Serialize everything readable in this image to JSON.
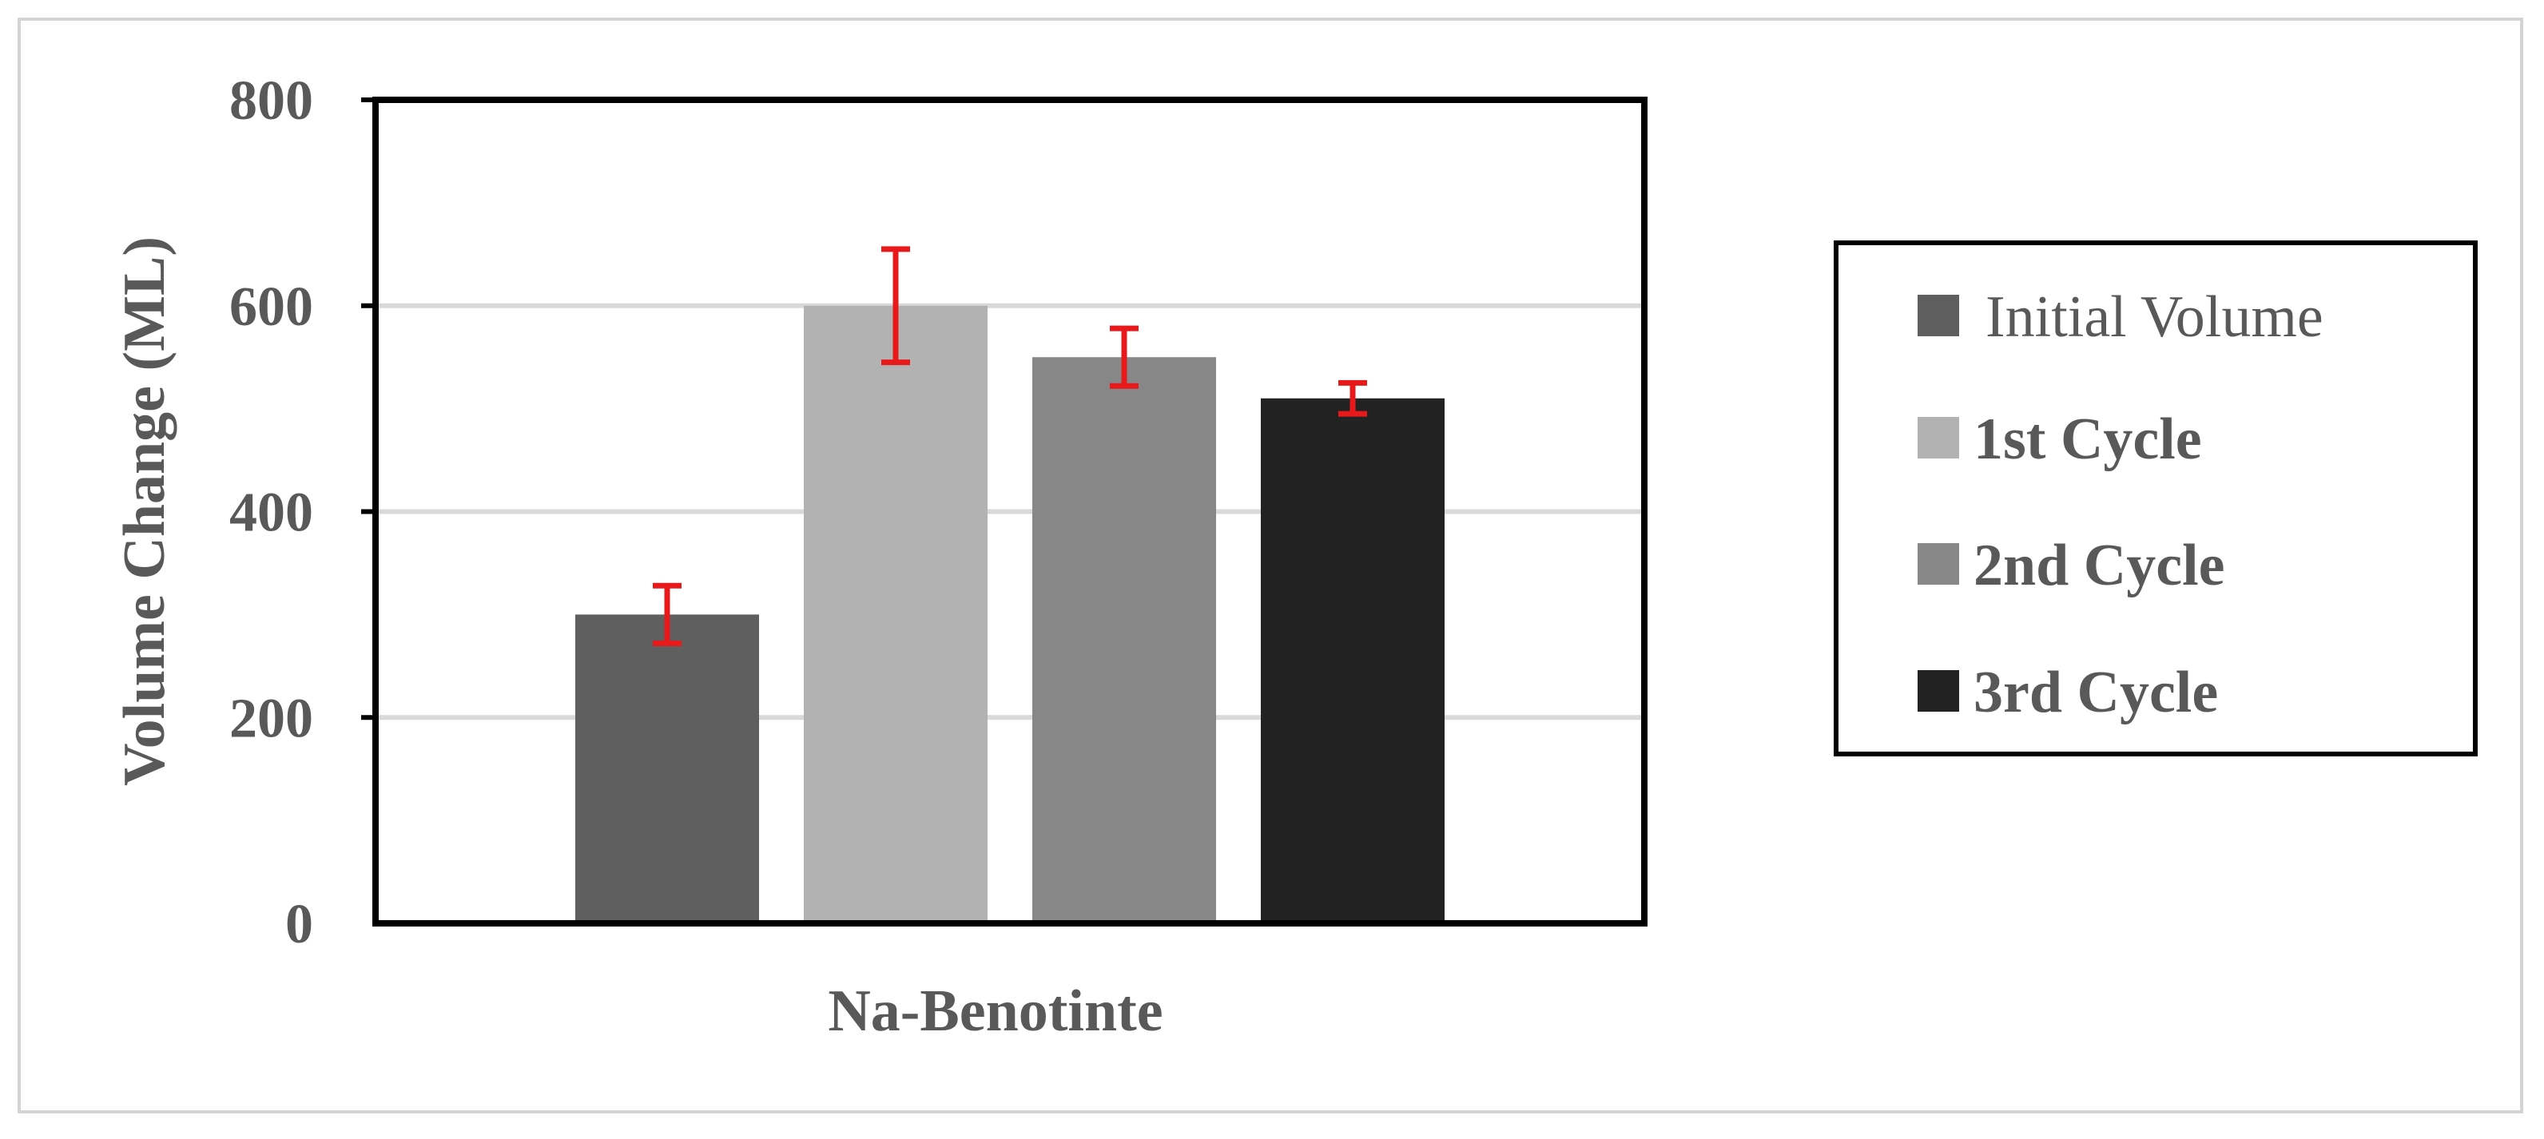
{
  "chart_data": {
    "type": "bar",
    "categories": [
      "Na-Benotinte"
    ],
    "series": [
      {
        "name": "Initial Volume",
        "values": [
          300
        ],
        "error": [
          28
        ],
        "color": "#5f5f5f"
      },
      {
        "name": "1st Cycle",
        "values": [
          600
        ],
        "error": [
          55
        ],
        "color": "#b2b2b2"
      },
      {
        "name": "2nd Cycle",
        "values": [
          550
        ],
        "error": [
          28
        ],
        "color": "#878787"
      },
      {
        "name": "3rd Cycle",
        "values": [
          510
        ],
        "error": [
          15
        ],
        "color": "#222222"
      }
    ],
    "error_bar_color": "#e8191b",
    "title": "",
    "xlabel": "Na-Benotinte",
    "ylabel": "Volume Change (ML)",
    "ylim": [
      0,
      800
    ],
    "yticks": [
      "0",
      "200",
      "400",
      "600",
      "800"
    ],
    "grid": true,
    "legend_position": "right"
  }
}
